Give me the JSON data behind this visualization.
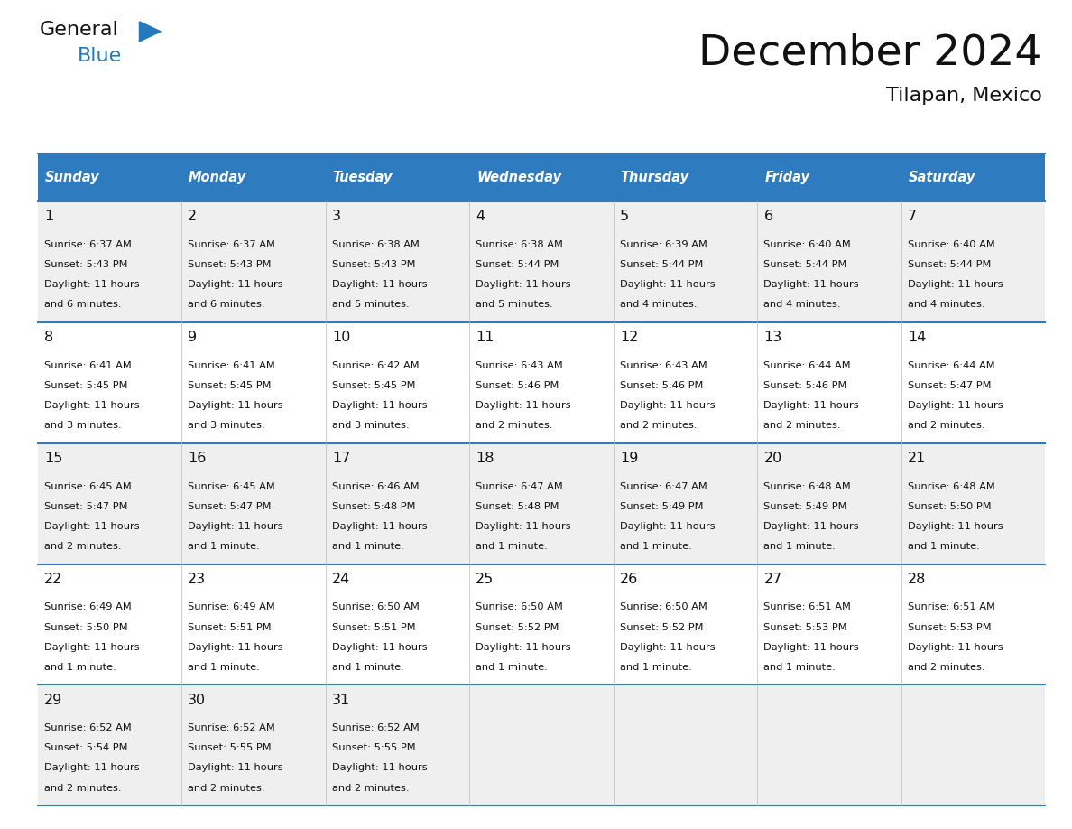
{
  "title": "December 2024",
  "subtitle": "Tilapan, Mexico",
  "header_color": "#2E7BBF",
  "header_text_color": "#FFFFFF",
  "days_of_week": [
    "Sunday",
    "Monday",
    "Tuesday",
    "Wednesday",
    "Thursday",
    "Friday",
    "Saturday"
  ],
  "border_color": "#2E7BBF",
  "weeks": [
    [
      {
        "day": 1,
        "sunrise": "6:37 AM",
        "sunset": "5:43 PM",
        "daylight_line1": "Daylight: 11 hours",
        "daylight_line2": "and 6 minutes."
      },
      {
        "day": 2,
        "sunrise": "6:37 AM",
        "sunset": "5:43 PM",
        "daylight_line1": "Daylight: 11 hours",
        "daylight_line2": "and 6 minutes."
      },
      {
        "day": 3,
        "sunrise": "6:38 AM",
        "sunset": "5:43 PM",
        "daylight_line1": "Daylight: 11 hours",
        "daylight_line2": "and 5 minutes."
      },
      {
        "day": 4,
        "sunrise": "6:38 AM",
        "sunset": "5:44 PM",
        "daylight_line1": "Daylight: 11 hours",
        "daylight_line2": "and 5 minutes."
      },
      {
        "day": 5,
        "sunrise": "6:39 AM",
        "sunset": "5:44 PM",
        "daylight_line1": "Daylight: 11 hours",
        "daylight_line2": "and 4 minutes."
      },
      {
        "day": 6,
        "sunrise": "6:40 AM",
        "sunset": "5:44 PM",
        "daylight_line1": "Daylight: 11 hours",
        "daylight_line2": "and 4 minutes."
      },
      {
        "day": 7,
        "sunrise": "6:40 AM",
        "sunset": "5:44 PM",
        "daylight_line1": "Daylight: 11 hours",
        "daylight_line2": "and 4 minutes."
      }
    ],
    [
      {
        "day": 8,
        "sunrise": "6:41 AM",
        "sunset": "5:45 PM",
        "daylight_line1": "Daylight: 11 hours",
        "daylight_line2": "and 3 minutes."
      },
      {
        "day": 9,
        "sunrise": "6:41 AM",
        "sunset": "5:45 PM",
        "daylight_line1": "Daylight: 11 hours",
        "daylight_line2": "and 3 minutes."
      },
      {
        "day": 10,
        "sunrise": "6:42 AM",
        "sunset": "5:45 PM",
        "daylight_line1": "Daylight: 11 hours",
        "daylight_line2": "and 3 minutes."
      },
      {
        "day": 11,
        "sunrise": "6:43 AM",
        "sunset": "5:46 PM",
        "daylight_line1": "Daylight: 11 hours",
        "daylight_line2": "and 2 minutes."
      },
      {
        "day": 12,
        "sunrise": "6:43 AM",
        "sunset": "5:46 PM",
        "daylight_line1": "Daylight: 11 hours",
        "daylight_line2": "and 2 minutes."
      },
      {
        "day": 13,
        "sunrise": "6:44 AM",
        "sunset": "5:46 PM",
        "daylight_line1": "Daylight: 11 hours",
        "daylight_line2": "and 2 minutes."
      },
      {
        "day": 14,
        "sunrise": "6:44 AM",
        "sunset": "5:47 PM",
        "daylight_line1": "Daylight: 11 hours",
        "daylight_line2": "and 2 minutes."
      }
    ],
    [
      {
        "day": 15,
        "sunrise": "6:45 AM",
        "sunset": "5:47 PM",
        "daylight_line1": "Daylight: 11 hours",
        "daylight_line2": "and 2 minutes."
      },
      {
        "day": 16,
        "sunrise": "6:45 AM",
        "sunset": "5:47 PM",
        "daylight_line1": "Daylight: 11 hours",
        "daylight_line2": "and 1 minute."
      },
      {
        "day": 17,
        "sunrise": "6:46 AM",
        "sunset": "5:48 PM",
        "daylight_line1": "Daylight: 11 hours",
        "daylight_line2": "and 1 minute."
      },
      {
        "day": 18,
        "sunrise": "6:47 AM",
        "sunset": "5:48 PM",
        "daylight_line1": "Daylight: 11 hours",
        "daylight_line2": "and 1 minute."
      },
      {
        "day": 19,
        "sunrise": "6:47 AM",
        "sunset": "5:49 PM",
        "daylight_line1": "Daylight: 11 hours",
        "daylight_line2": "and 1 minute."
      },
      {
        "day": 20,
        "sunrise": "6:48 AM",
        "sunset": "5:49 PM",
        "daylight_line1": "Daylight: 11 hours",
        "daylight_line2": "and 1 minute."
      },
      {
        "day": 21,
        "sunrise": "6:48 AM",
        "sunset": "5:50 PM",
        "daylight_line1": "Daylight: 11 hours",
        "daylight_line2": "and 1 minute."
      }
    ],
    [
      {
        "day": 22,
        "sunrise": "6:49 AM",
        "sunset": "5:50 PM",
        "daylight_line1": "Daylight: 11 hours",
        "daylight_line2": "and 1 minute."
      },
      {
        "day": 23,
        "sunrise": "6:49 AM",
        "sunset": "5:51 PM",
        "daylight_line1": "Daylight: 11 hours",
        "daylight_line2": "and 1 minute."
      },
      {
        "day": 24,
        "sunrise": "6:50 AM",
        "sunset": "5:51 PM",
        "daylight_line1": "Daylight: 11 hours",
        "daylight_line2": "and 1 minute."
      },
      {
        "day": 25,
        "sunrise": "6:50 AM",
        "sunset": "5:52 PM",
        "daylight_line1": "Daylight: 11 hours",
        "daylight_line2": "and 1 minute."
      },
      {
        "day": 26,
        "sunrise": "6:50 AM",
        "sunset": "5:52 PM",
        "daylight_line1": "Daylight: 11 hours",
        "daylight_line2": "and 1 minute."
      },
      {
        "day": 27,
        "sunrise": "6:51 AM",
        "sunset": "5:53 PM",
        "daylight_line1": "Daylight: 11 hours",
        "daylight_line2": "and 1 minute."
      },
      {
        "day": 28,
        "sunrise": "6:51 AM",
        "sunset": "5:53 PM",
        "daylight_line1": "Daylight: 11 hours",
        "daylight_line2": "and 2 minutes."
      }
    ],
    [
      {
        "day": 29,
        "sunrise": "6:52 AM",
        "sunset": "5:54 PM",
        "daylight_line1": "Daylight: 11 hours",
        "daylight_line2": "and 2 minutes."
      },
      {
        "day": 30,
        "sunrise": "6:52 AM",
        "sunset": "5:55 PM",
        "daylight_line1": "Daylight: 11 hours",
        "daylight_line2": "and 2 minutes."
      },
      {
        "day": 31,
        "sunrise": "6:52 AM",
        "sunset": "5:55 PM",
        "daylight_line1": "Daylight: 11 hours",
        "daylight_line2": "and 2 minutes."
      },
      null,
      null,
      null,
      null
    ]
  ],
  "logo_general_color": "#1a1a1a",
  "logo_blue_color": "#2479BE",
  "fig_width": 11.88,
  "fig_height": 9.18
}
